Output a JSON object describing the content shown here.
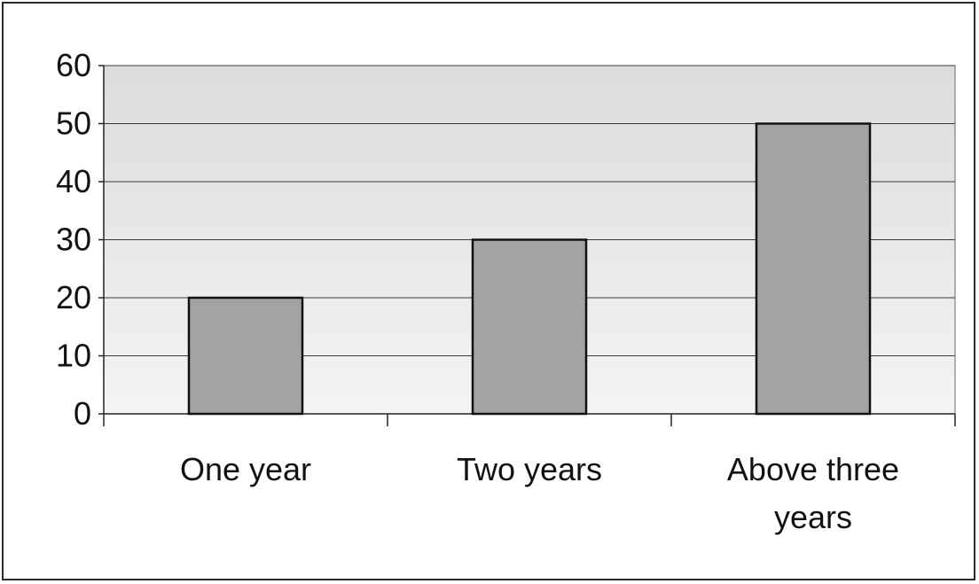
{
  "chart_data": {
    "type": "bar",
    "categories": [
      "One year",
      "Two years",
      "Above three years"
    ],
    "category_lines": [
      [
        "One year"
      ],
      [
        "Two years"
      ],
      [
        "Above three",
        "years"
      ]
    ],
    "values": [
      20,
      30,
      50
    ],
    "title": "",
    "xlabel": "",
    "ylabel": "",
    "ylim": [
      0,
      60
    ],
    "yticks": [
      0,
      10,
      20,
      30,
      40,
      50,
      60
    ],
    "grid": true,
    "legend": "none",
    "colors": {
      "bar_fill": "#a3a3a3",
      "bar_stroke": "#111111",
      "plot_bg_top": "#dcdcdc",
      "plot_bg_bottom": "#f4f4f4",
      "grid": "#3a3a3a"
    }
  }
}
